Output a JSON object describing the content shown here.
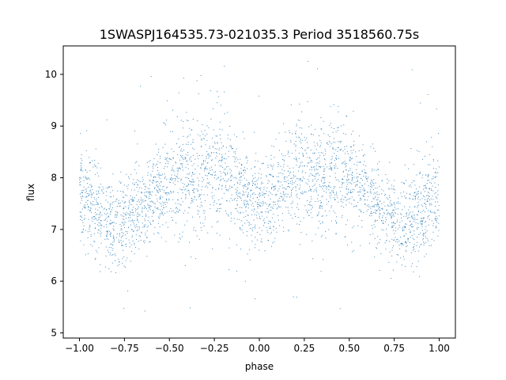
{
  "chart_data": {
    "type": "scatter",
    "title": "1SWASPJ164535.73-021035.3 Period 3518560.75s",
    "xlabel": "phase",
    "ylabel": "flux",
    "xlim": [
      -1.09,
      1.09
    ],
    "ylim": [
      4.9,
      10.55
    ],
    "xticks": [
      -1.0,
      -0.75,
      -0.5,
      -0.25,
      0.0,
      0.25,
      0.5,
      0.75,
      1.0
    ],
    "xtick_labels": [
      "−1.00",
      "−0.75",
      "−0.50",
      "−0.25",
      "0.00",
      "0.25",
      "0.50",
      "0.75",
      "1.00"
    ],
    "yticks": [
      5,
      6,
      7,
      8,
      9,
      10
    ],
    "ytick_labels": [
      "5",
      "6",
      "7",
      "8",
      "9",
      "10"
    ],
    "grid": false,
    "legend": "none",
    "marker_color": "#1f77b4",
    "series": [
      {
        "profile_x": [
          0.0,
          0.05,
          0.1,
          0.15,
          0.2,
          0.25,
          0.3,
          0.35,
          0.4,
          0.45,
          0.5,
          0.55,
          0.6,
          0.65,
          0.7,
          0.75,
          0.8,
          0.85,
          0.9,
          0.95,
          1.0
        ],
        "profile_median_flux": [
          7.4,
          7.5,
          7.7,
          7.9,
          8.1,
          8.2,
          8.1,
          8.0,
          8.1,
          8.0,
          7.9,
          7.8,
          7.6,
          7.5,
          7.3,
          7.2,
          7.1,
          7.2,
          7.4,
          7.6,
          7.6
        ],
        "profile_spread": [
          0.45,
          0.45,
          0.45,
          0.5,
          0.55,
          0.55,
          0.55,
          0.6,
          0.6,
          0.6,
          0.5,
          0.45,
          0.4,
          0.4,
          0.4,
          0.45,
          0.45,
          0.45,
          0.45,
          0.45,
          0.45
        ],
        "phase_range": [
          -1.0,
          1.0
        ],
        "flux_range_main": [
          6.0,
          10.2
        ],
        "outlier_flux_range": [
          5.1,
          10.3
        ]
      }
    ]
  }
}
